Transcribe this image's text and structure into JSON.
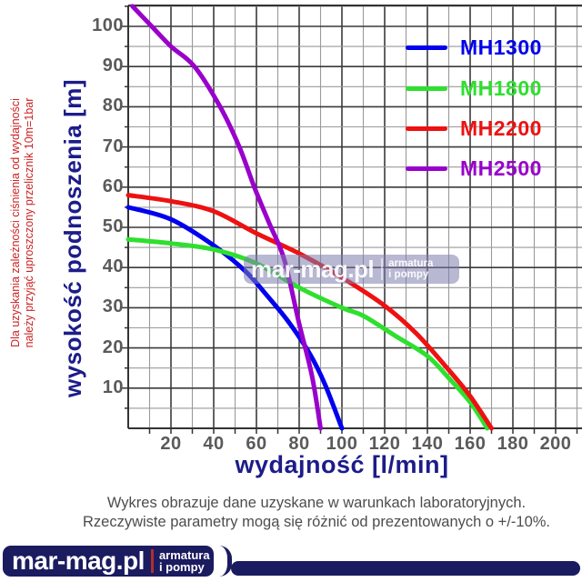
{
  "red_note": {
    "line1": "Dla uzyskania zależności ciśnienia od wydajności",
    "line2": "należy przyjąć uproszczony przelicznik 10m=1bar"
  },
  "axes": {
    "y_title": "wysokość podnoszenia [m]",
    "x_title": "wydajność [l/min]"
  },
  "caption": {
    "line1": "Wykres obrazuje dane uzyskane w warunkach laboratoryjnych.",
    "line2": "Rzeczywiste parametry mogą się różnić od prezentowanych o +/-10%."
  },
  "watermark": {
    "brand": "mar-mag.pl",
    "tagline_line1": "armatura",
    "tagline_line2": "i pompy"
  },
  "logo": {
    "brand": "mar-mag.pl",
    "tagline_line1": "armatura",
    "tagline_line2": "i pompy"
  },
  "colors": {
    "axis_title": "#1c1c8a",
    "tick_text": "#5a5a5a",
    "grid_major": "#3a3a3a",
    "grid_minor": "#9a9a9a",
    "note_red": "#cc2222",
    "logo_navy": "#1b1b60"
  },
  "chart_data": {
    "type": "line",
    "title": "",
    "xlabel": "wydajność [l/min]",
    "ylabel": "wysokość podnoszenia [m]",
    "xlim": [
      0,
      212
    ],
    "ylim": [
      0,
      105
    ],
    "x_ticks": [
      20,
      40,
      60,
      80,
      100,
      120,
      140,
      160,
      180,
      200
    ],
    "y_ticks": [
      10,
      20,
      30,
      40,
      50,
      60,
      70,
      80,
      90,
      100
    ],
    "grid": {
      "x_minor_step": 10,
      "x_major_step": 20,
      "y_minor_step": 5,
      "y_major_step": 10
    },
    "legend_position": "top-right",
    "series": [
      {
        "name": "MH1300",
        "color": "#0000ee",
        "points": [
          [
            0,
            55
          ],
          [
            20,
            52
          ],
          [
            40,
            45.5
          ],
          [
            55,
            39
          ],
          [
            65,
            33
          ],
          [
            75,
            26.5
          ],
          [
            85,
            18.5
          ],
          [
            92,
            11
          ],
          [
            100,
            0
          ]
        ]
      },
      {
        "name": "MH1800",
        "color": "#2ee02e",
        "points": [
          [
            0,
            47
          ],
          [
            20,
            46
          ],
          [
            40,
            44.5
          ],
          [
            60,
            41
          ],
          [
            80,
            35
          ],
          [
            100,
            30
          ],
          [
            110,
            28
          ],
          [
            125,
            23
          ],
          [
            140,
            18
          ],
          [
            150,
            12.5
          ],
          [
            160,
            6.5
          ],
          [
            168,
            0
          ]
        ]
      },
      {
        "name": "MH2200",
        "color": "#ee1111",
        "points": [
          [
            0,
            58
          ],
          [
            20,
            56.5
          ],
          [
            40,
            54
          ],
          [
            60,
            48.5
          ],
          [
            80,
            43.5
          ],
          [
            100,
            37.5
          ],
          [
            120,
            30.5
          ],
          [
            135,
            23.5
          ],
          [
            150,
            14.5
          ],
          [
            160,
            8
          ],
          [
            170,
            0
          ]
        ]
      },
      {
        "name": "MH2500",
        "color": "#9a00cc",
        "points": [
          [
            2,
            105
          ],
          [
            11,
            100
          ],
          [
            20,
            95
          ],
          [
            31,
            90
          ],
          [
            43,
            80
          ],
          [
            52,
            70
          ],
          [
            59,
            60
          ],
          [
            66,
            51
          ],
          [
            73,
            42
          ],
          [
            80,
            26
          ],
          [
            86,
            13
          ],
          [
            90,
            0
          ]
        ]
      }
    ]
  }
}
